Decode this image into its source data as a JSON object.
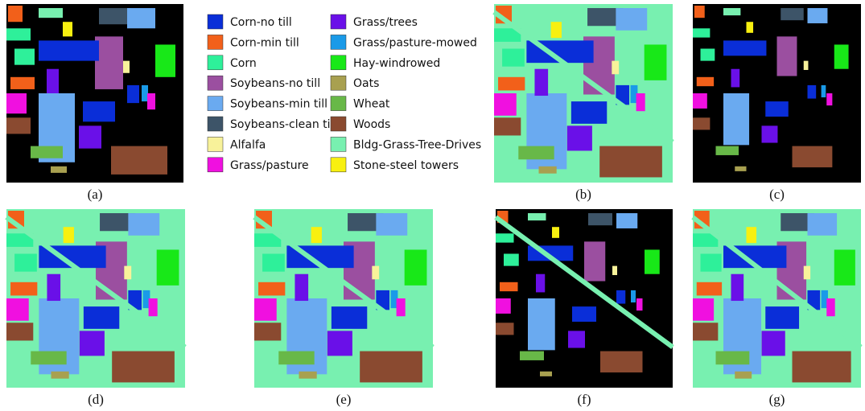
{
  "legend": [
    {
      "label": "Corn-no till",
      "color": "#0a2ed8"
    },
    {
      "label": "Corn-min till",
      "color": "#f2601a"
    },
    {
      "label": "Corn",
      "color": "#2ef09a"
    },
    {
      "label": "Soybeans-no till",
      "color": "#9b4fa0"
    },
    {
      "label": "Soybeans-min till",
      "color": "#6aaaf0"
    },
    {
      "label": "Soybeans-clean till",
      "color": "#3d5468"
    },
    {
      "label": "Alfalfa",
      "color": "#f8f29a"
    },
    {
      "label": "Grass/pasture",
      "color": "#f010e0"
    },
    {
      "label": "Grass/trees",
      "color": "#6a10e8"
    },
    {
      "label": "Grass/pasture-mowed",
      "color": "#1a9ae8"
    },
    {
      "label": "Hay-windrowed",
      "color": "#18e818"
    },
    {
      "label": "Oats",
      "color": "#a8a050"
    },
    {
      "label": "Wheat",
      "color": "#68b848"
    },
    {
      "label": "Woods",
      "color": "#8a4a30"
    },
    {
      "label": "Bldg-Grass-Tree-Drives",
      "color": "#78f0b0"
    },
    {
      "label": "Stone-steel towers",
      "color": "#f8f010"
    }
  ],
  "panels": [
    "(a)",
    "(b)",
    "(c)",
    "(d)",
    "(e)",
    "(f)",
    "(g)"
  ]
}
